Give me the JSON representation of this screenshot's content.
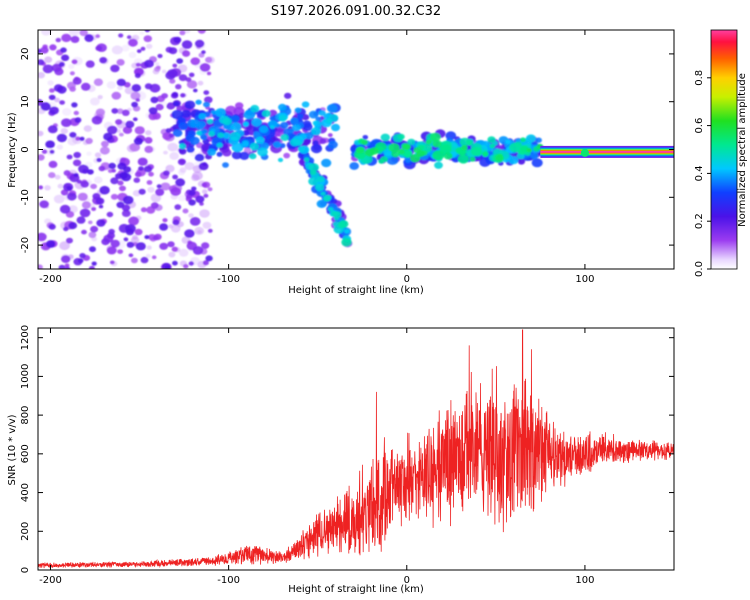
{
  "chart_data": [
    {
      "type": "heatmap",
      "title": "S197.2026.091.00.32.C32",
      "xlabel": "Height of straight line (km)",
      "ylabel": "Frequency (Hz)",
      "xlim": [
        -207,
        150
      ],
      "ylim": [
        -25,
        25
      ],
      "x_ticks": [
        -200,
        -100,
        0,
        100
      ],
      "x_tick_labels": [
        "-200",
        "-100",
        "0",
        "100"
      ],
      "y_ticks": [
        -20,
        -10,
        0,
        10,
        20
      ],
      "y_tick_labels": [
        "-20",
        "-10",
        "0",
        "10",
        "20"
      ],
      "colorbar": {
        "label": "Normalized spectral amplitude",
        "range": [
          0.0,
          1.0
        ],
        "ticks": [
          0.0,
          0.2,
          0.4,
          0.6,
          0.8
        ],
        "tick_labels": [
          "0.0",
          "0.2",
          "0.4",
          "0.6",
          "0.8"
        ]
      },
      "features": [
        {
          "name": "scattered low-amplitude noise",
          "x_range": [
            -207,
            -110
          ],
          "freq_range": [
            -25,
            25
          ],
          "amplitude": 0.1
        },
        {
          "name": "broadband band",
          "x_range": [
            -130,
            -40
          ],
          "freq_range": [
            -6,
            10
          ],
          "amplitude": 0.2
        },
        {
          "name": "drifting branch",
          "x_range": [
            -60,
            -33
          ],
          "freq_start": 0,
          "freq_end": -18,
          "amplitude": 0.25
        },
        {
          "name": "narrowband clusters",
          "x_range": [
            -30,
            75
          ],
          "freq_range": [
            -3,
            3
          ],
          "amplitude": 0.3
        },
        {
          "name": "dominant tone",
          "x_range": [
            75,
            150
          ],
          "frequency_hz": -0.5,
          "amplitude": 1.0
        }
      ]
    },
    {
      "type": "line",
      "series_name": "SNR",
      "xlabel": "Height of straight line (km)",
      "ylabel": "SNR (10 * v/v)",
      "xlim": [
        -207,
        150
      ],
      "ylim": [
        0,
        1250
      ],
      "x_ticks": [
        -200,
        -100,
        0,
        100
      ],
      "x_tick_labels": [
        "-200",
        "-100",
        "0",
        "100"
      ],
      "y_ticks": [
        0,
        200,
        400,
        600,
        800,
        1000,
        1200
      ],
      "y_tick_labels": [
        "0",
        "200",
        "400",
        "600",
        "800",
        "1000",
        "1200"
      ],
      "line_color": "#ee2222",
      "envelope": {
        "x": [
          -207,
          -150,
          -110,
          -95,
          -85,
          -70,
          -60,
          -50,
          -40,
          -30,
          -22,
          -15,
          -5,
          5,
          20,
          35,
          50,
          65,
          80,
          95,
          110,
          130,
          150
        ],
        "mean": [
          25,
          30,
          45,
          70,
          85,
          60,
          110,
          190,
          210,
          230,
          320,
          380,
          430,
          470,
          560,
          620,
          640,
          640,
          600,
          590,
          620,
          620,
          610
        ],
        "spread": [
          15,
          15,
          25,
          45,
          55,
          35,
          70,
          130,
          180,
          200,
          280,
          300,
          220,
          250,
          320,
          380,
          420,
          450,
          230,
          130,
          90,
          60,
          50
        ]
      },
      "spikes": [
        {
          "x": -17,
          "value": 920
        },
        {
          "x": 35,
          "value": 1160
        },
        {
          "x": 48,
          "value": 1040
        },
        {
          "x": 65,
          "value": 1240
        },
        {
          "x": 70,
          "value": 1140
        }
      ]
    }
  ]
}
